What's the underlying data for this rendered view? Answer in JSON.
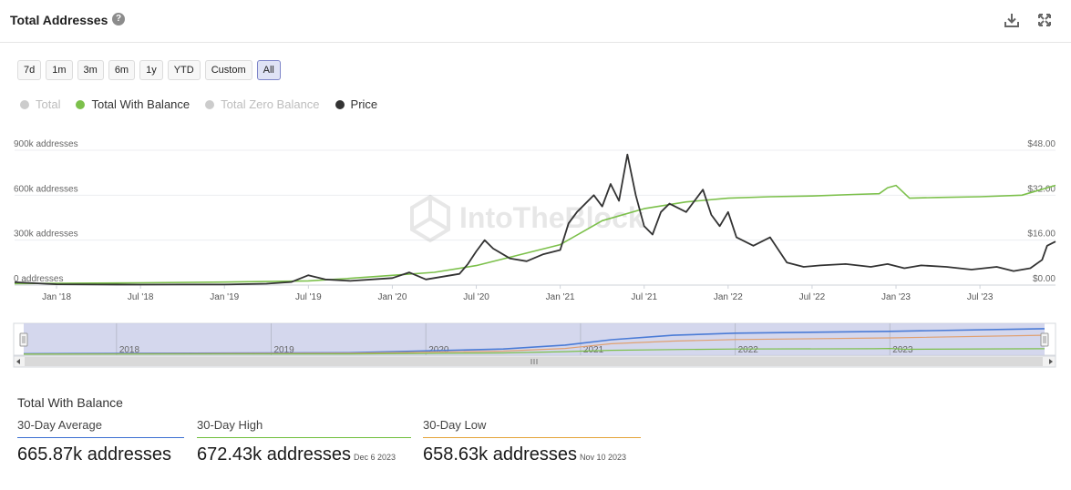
{
  "header": {
    "title": "Total Addresses",
    "help_icon": "question-circle-icon",
    "download_icon": "download-icon",
    "expand_icon": "expand-icon"
  },
  "range_buttons": [
    {
      "label": "7d",
      "active": false
    },
    {
      "label": "1m",
      "active": false
    },
    {
      "label": "3m",
      "active": false
    },
    {
      "label": "6m",
      "active": false
    },
    {
      "label": "1y",
      "active": false
    },
    {
      "label": "YTD",
      "active": false
    },
    {
      "label": "Custom",
      "active": false
    },
    {
      "label": "All",
      "active": true
    }
  ],
  "legend": [
    {
      "label": "Total",
      "color": "#cccccc",
      "enabled": false
    },
    {
      "label": "Total With Balance",
      "color": "#7cc04b",
      "enabled": true
    },
    {
      "label": "Total Zero Balance",
      "color": "#cccccc",
      "enabled": false
    },
    {
      "label": "Price",
      "color": "#333333",
      "enabled": true
    }
  ],
  "chart_data": {
    "type": "line",
    "title": "Total Addresses",
    "watermark": "IntoTheBlock",
    "x_ticks": [
      "Jan '18",
      "Jul '18",
      "Jan '19",
      "Jul '19",
      "Jan '20",
      "Jul '20",
      "Jan '21",
      "Jul '21",
      "Jan '22",
      "Jul '22",
      "Jan '23",
      "Jul '23"
    ],
    "x_range": [
      2017.75,
      2023.95
    ],
    "y_left": {
      "label": "addresses",
      "ticks": [
        "0 addresses",
        "300k addresses",
        "600k addresses",
        "900k addresses"
      ],
      "range": [
        0,
        900000
      ]
    },
    "y_right": {
      "label": "price",
      "ticks": [
        "$0.00",
        "$16.00",
        "$32.00",
        "$48.00"
      ],
      "range": [
        0,
        48
      ]
    },
    "series": [
      {
        "name": "Total With Balance",
        "color": "#7cc04b",
        "axis": "left",
        "points": [
          [
            2017.75,
            10000
          ],
          [
            2018.0,
            12000
          ],
          [
            2018.5,
            15000
          ],
          [
            2019.0,
            20000
          ],
          [
            2019.5,
            28000
          ],
          [
            2019.75,
            45000
          ],
          [
            2020.0,
            65000
          ],
          [
            2020.25,
            85000
          ],
          [
            2020.5,
            130000
          ],
          [
            2020.75,
            200000
          ],
          [
            2021.0,
            270000
          ],
          [
            2021.25,
            430000
          ],
          [
            2021.5,
            510000
          ],
          [
            2021.75,
            555000
          ],
          [
            2022.0,
            580000
          ],
          [
            2022.25,
            590000
          ],
          [
            2022.5,
            595000
          ],
          [
            2022.75,
            605000
          ],
          [
            2022.9,
            610000
          ],
          [
            2022.95,
            650000
          ],
          [
            2023.0,
            665000
          ],
          [
            2023.08,
            580000
          ],
          [
            2023.25,
            585000
          ],
          [
            2023.5,
            590000
          ],
          [
            2023.75,
            600000
          ],
          [
            2023.95,
            665870
          ]
        ]
      },
      {
        "name": "Price",
        "color": "#333333",
        "axis": "right",
        "points": [
          [
            2017.75,
            1.0
          ],
          [
            2018.0,
            0.3
          ],
          [
            2018.25,
            0.2
          ],
          [
            2018.5,
            0.15
          ],
          [
            2018.75,
            0.2
          ],
          [
            2019.0,
            0.2
          ],
          [
            2019.25,
            0.5
          ],
          [
            2019.4,
            1.1
          ],
          [
            2019.5,
            3.5
          ],
          [
            2019.6,
            2.0
          ],
          [
            2019.75,
            1.5
          ],
          [
            2020.0,
            2.5
          ],
          [
            2020.1,
            4.5
          ],
          [
            2020.2,
            2.0
          ],
          [
            2020.4,
            4.0
          ],
          [
            2020.45,
            7.5
          ],
          [
            2020.5,
            12.0
          ],
          [
            2020.55,
            16.0
          ],
          [
            2020.6,
            13.0
          ],
          [
            2020.7,
            9.5
          ],
          [
            2020.8,
            8.5
          ],
          [
            2020.9,
            11.0
          ],
          [
            2021.0,
            12.5
          ],
          [
            2021.05,
            22.0
          ],
          [
            2021.1,
            26.0
          ],
          [
            2021.2,
            32.0
          ],
          [
            2021.25,
            28.0
          ],
          [
            2021.3,
            36.0
          ],
          [
            2021.35,
            30.0
          ],
          [
            2021.4,
            46.5
          ],
          [
            2021.45,
            32.0
          ],
          [
            2021.5,
            21.0
          ],
          [
            2021.55,
            18.0
          ],
          [
            2021.6,
            26.0
          ],
          [
            2021.65,
            29.0
          ],
          [
            2021.75,
            26.0
          ],
          [
            2021.85,
            34.0
          ],
          [
            2021.9,
            25.0
          ],
          [
            2021.95,
            21.0
          ],
          [
            2022.0,
            26.0
          ],
          [
            2022.05,
            17.0
          ],
          [
            2022.15,
            14.0
          ],
          [
            2022.25,
            17.0
          ],
          [
            2022.35,
            8.0
          ],
          [
            2022.45,
            6.5
          ],
          [
            2022.55,
            7.0
          ],
          [
            2022.7,
            7.5
          ],
          [
            2022.85,
            6.5
          ],
          [
            2022.95,
            7.5
          ],
          [
            2023.05,
            6.0
          ],
          [
            2023.15,
            7.0
          ],
          [
            2023.3,
            6.5
          ],
          [
            2023.45,
            5.5
          ],
          [
            2023.6,
            6.5
          ],
          [
            2023.7,
            5.0
          ],
          [
            2023.8,
            6.0
          ],
          [
            2023.87,
            9.0
          ],
          [
            2023.9,
            14.0
          ],
          [
            2023.95,
            15.5
          ]
        ]
      }
    ],
    "navigator": {
      "x_ticks": [
        "2018",
        "2019",
        "2020",
        "2021",
        "2022",
        "2023"
      ],
      "series_colors": [
        "#4a7bd6",
        "#e0a070",
        "#7cc04b"
      ]
    }
  },
  "stats": {
    "title": "Total With Balance",
    "items": [
      {
        "label": "30-Day Average",
        "value": "665.87k addresses",
        "date": "",
        "color": "#3c6fd1"
      },
      {
        "label": "30-Day High",
        "value": "672.43k addresses",
        "date": "Dec 6 2023",
        "color": "#6fbf3c"
      },
      {
        "label": "30-Day Low",
        "value": "658.63k addresses",
        "date": "Nov 10 2023",
        "color": "#e4a43a"
      }
    ]
  }
}
